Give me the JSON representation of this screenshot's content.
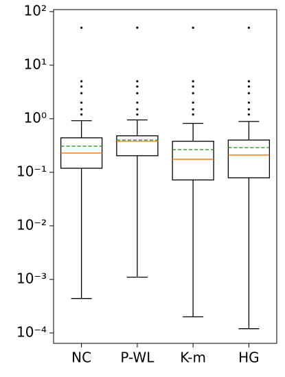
{
  "chart_data": {
    "type": "box",
    "log_scale": true,
    "categories": [
      "NC",
      "P-WL",
      "K-m",
      "HG"
    ],
    "boxes": [
      {
        "whislo": 0.00044,
        "q1": 0.119,
        "med": 0.229,
        "mean": 0.307,
        "q3": 0.44,
        "whishi": 0.92,
        "fliers": [
          1.2,
          1.5,
          2,
          3,
          4,
          5,
          50
        ]
      },
      {
        "whislo": 0.0011,
        "q1": 0.204,
        "med": 0.38,
        "mean": 0.4,
        "q3": 0.48,
        "whishi": 0.95,
        "fliers": [
          1.2,
          1.5,
          2,
          3,
          4,
          5,
          50
        ]
      },
      {
        "whislo": 0.0002,
        "q1": 0.072,
        "med": 0.175,
        "mean": 0.265,
        "q3": 0.38,
        "whishi": 0.82,
        "fliers": [
          1.2,
          1.5,
          2,
          3,
          4,
          5,
          50
        ]
      },
      {
        "whislo": 0.00012,
        "q1": 0.079,
        "med": 0.21,
        "mean": 0.29,
        "q3": 0.4,
        "whishi": 0.89,
        "fliers": [
          1.2,
          1.5,
          2,
          3,
          4,
          5,
          50
        ]
      }
    ],
    "box_color": "#000000",
    "median_color": "#ff7f0e",
    "mean_color": "#2ca02c",
    "ylim": [
      6.4e-05,
      109
    ],
    "yticks": [
      {
        "value": 0.0001,
        "label": "10⁻⁴"
      },
      {
        "value": 0.001,
        "label": "10⁻³"
      },
      {
        "value": 0.01,
        "label": "10⁻²"
      },
      {
        "value": 0.1,
        "label": "10⁻¹"
      },
      {
        "value": 1,
        "label": "10⁰"
      },
      {
        "value": 10,
        "label": "10¹"
      },
      {
        "value": 100,
        "label": "10²"
      }
    ]
  }
}
